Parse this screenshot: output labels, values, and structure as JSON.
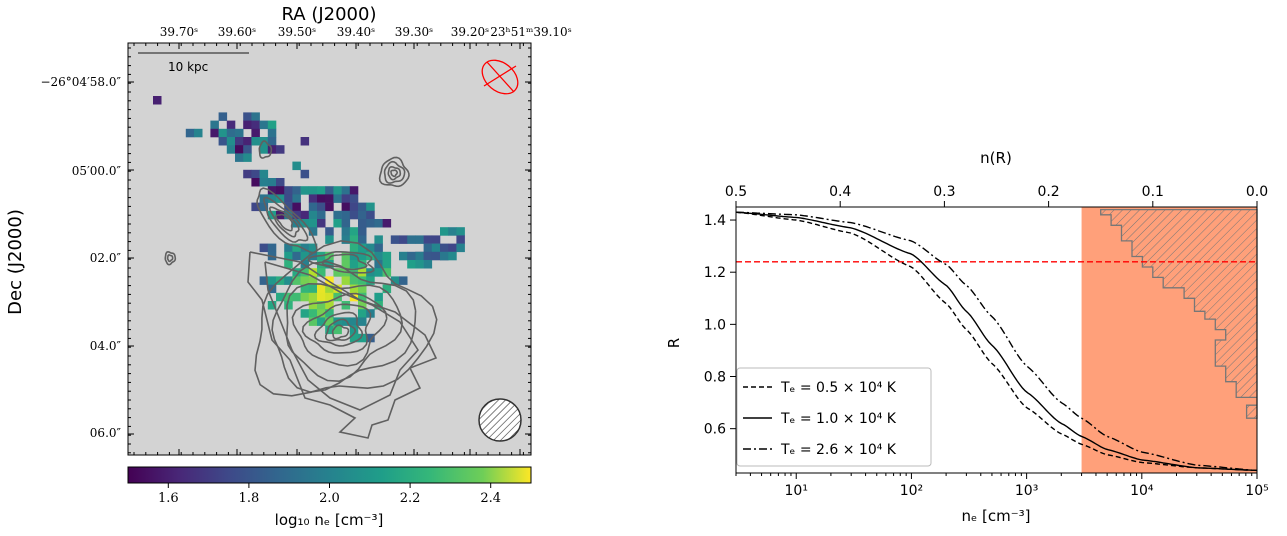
{
  "chart_data": [
    {
      "type": "heatmap",
      "xlabel": "RA (J2000)",
      "ylabel": "Dec (J2000)",
      "x_tick_labels": [
        "39.70ˢ",
        "39.60ˢ",
        "39.50ˢ",
        "39.40ˢ",
        "39.30ˢ",
        "39.20ˢ",
        "23ʰ51ᵐ39.10ˢ"
      ],
      "y_tick_labels": [
        "−26°04′58.0″",
        "05′00.0″",
        "02.0″",
        "04.0″",
        "06.0″"
      ],
      "scale_bar_label": "10 kpc",
      "colorbar": {
        "label": "log₁₀ nₑ [cm⁻³]",
        "ticks": [
          1.6,
          1.8,
          2.0,
          2.2,
          2.4
        ],
        "range": [
          1.5,
          2.5
        ],
        "colormap": "viridis"
      },
      "background_color": "#d3d3d3",
      "contour_color": "#606060",
      "beam_color": "#ff0000"
    },
    {
      "type": "line",
      "xlabel": "nₑ [cm⁻³]",
      "ylabel": "R",
      "top_xlabel": "n(R)",
      "xscale": "log",
      "xlim": [
        3,
        100000
      ],
      "ylim": [
        0.43,
        1.45
      ],
      "x_ticks": [
        {
          "value": 10,
          "label": "10¹"
        },
        {
          "value": 100,
          "label": "10²"
        },
        {
          "value": 1000,
          "label": "10³"
        },
        {
          "value": 10000,
          "label": "10⁴"
        },
        {
          "value": 100000,
          "label": "10⁵"
        }
      ],
      "y_ticks": [
        0.6,
        0.8,
        1.0,
        1.2,
        1.4
      ],
      "top_ticks": [
        "0.5",
        "0.4",
        "0.3",
        "0.2",
        "0.1",
        "0.0"
      ],
      "series": [
        {
          "name": "Tₑ = 0.5 × 10⁴ K",
          "style": "dashed",
          "x": [
            3,
            10,
            30,
            100,
            200,
            300,
            500,
            1000,
            2000,
            3000,
            5000,
            10000,
            30000,
            100000
          ],
          "y": [
            1.43,
            1.4,
            1.35,
            1.22,
            1.08,
            0.98,
            0.85,
            0.68,
            0.58,
            0.54,
            0.5,
            0.47,
            0.45,
            0.44
          ]
        },
        {
          "name": "Tₑ = 1.0 × 10⁴ K",
          "style": "solid",
          "x": [
            3,
            10,
            30,
            100,
            200,
            300,
            500,
            1000,
            2000,
            3000,
            5000,
            10000,
            30000,
            100000
          ],
          "y": [
            1.43,
            1.41,
            1.37,
            1.27,
            1.15,
            1.05,
            0.92,
            0.74,
            0.62,
            0.57,
            0.52,
            0.48,
            0.45,
            0.44
          ]
        },
        {
          "name": "Tₑ = 2.6 × 10⁴ K",
          "style": "dashdot",
          "x": [
            3,
            10,
            30,
            100,
            200,
            300,
            500,
            1000,
            2000,
            3000,
            5000,
            10000,
            30000,
            100000
          ],
          "y": [
            1.43,
            1.42,
            1.39,
            1.32,
            1.23,
            1.15,
            1.03,
            0.84,
            0.7,
            0.64,
            0.57,
            0.51,
            0.46,
            0.44
          ]
        }
      ],
      "hline": {
        "y": 1.24,
        "color": "#ff0000",
        "style": "dashed"
      },
      "shaded_region": {
        "x": [
          3000,
          100000
        ],
        "color": "#ffa07a"
      },
      "histogram": {
        "y_bins": [
          0.64,
          0.69,
          0.72,
          0.78,
          0.84,
          0.9,
          0.94,
          0.98,
          1.02,
          1.05,
          1.1,
          1.14,
          1.18,
          1.22,
          1.26,
          1.32,
          1.38,
          1.42,
          1.44
        ],
        "n_values": [
          0.01,
          0.0,
          0.02,
          0.03,
          0.04,
          0.04,
          0.03,
          0.04,
          0.05,
          0.06,
          0.07,
          0.09,
          0.1,
          0.11,
          0.12,
          0.13,
          0.14,
          0.15
        ],
        "hatch": "////",
        "edge_color": "#777777"
      },
      "legend_position": "lower-left"
    }
  ]
}
